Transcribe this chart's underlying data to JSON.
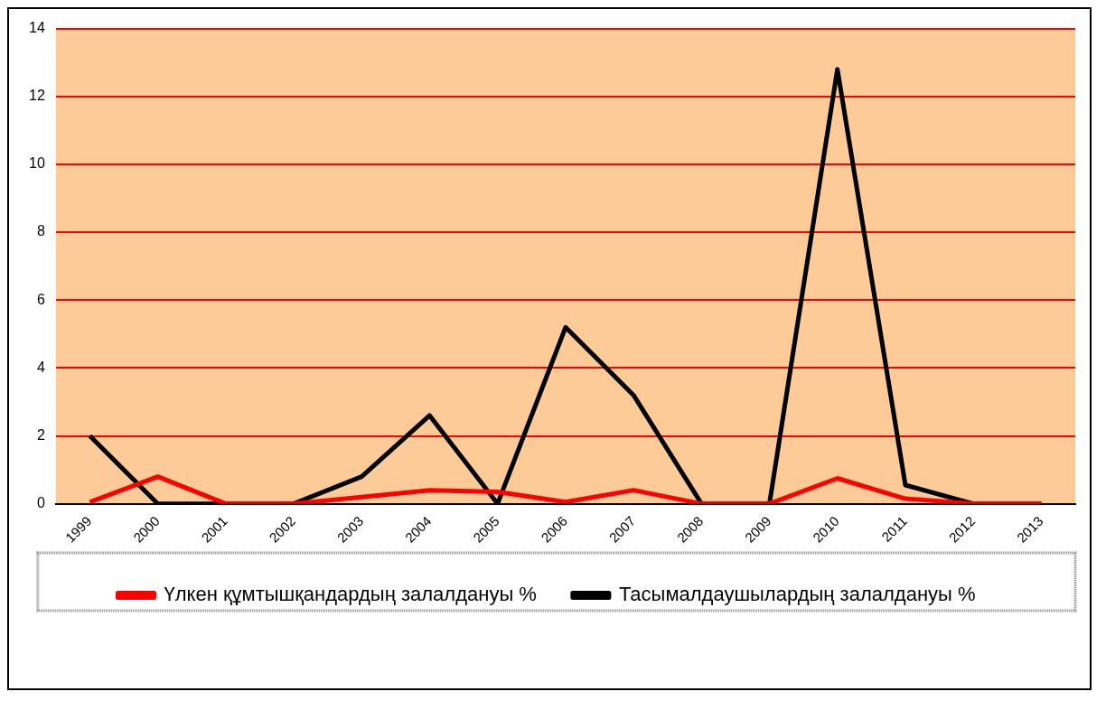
{
  "chart_data": {
    "type": "line",
    "categories": [
      "1999",
      "2000",
      "2001",
      "2002",
      "2003",
      "2004",
      "2005",
      "2006",
      "2007",
      "2008",
      "2009",
      "2010",
      "2011",
      "2012",
      "2013"
    ],
    "series": [
      {
        "name": "Үлкен құмтышқандардың залалдануы %",
        "color": "#ff0000",
        "values": [
          0.05,
          0.8,
          0,
          0,
          0.2,
          0.4,
          0.35,
          0.05,
          0.4,
          0,
          0,
          0.75,
          0.15,
          0,
          0
        ]
      },
      {
        "name": "Тасымалдаушылардың залалдануы %",
        "color": "#000000",
        "values": [
          2.0,
          0,
          0,
          0,
          0.8,
          2.6,
          0,
          5.2,
          3.2,
          0,
          0,
          12.8,
          0.55,
          0,
          0
        ]
      }
    ],
    "ylim": [
      0,
      14
    ],
    "yticks": [
      0,
      2,
      4,
      6,
      8,
      10,
      12,
      14
    ],
    "grid": "y",
    "legend": "bottom",
    "marker": "none",
    "line_style": "solid"
  }
}
